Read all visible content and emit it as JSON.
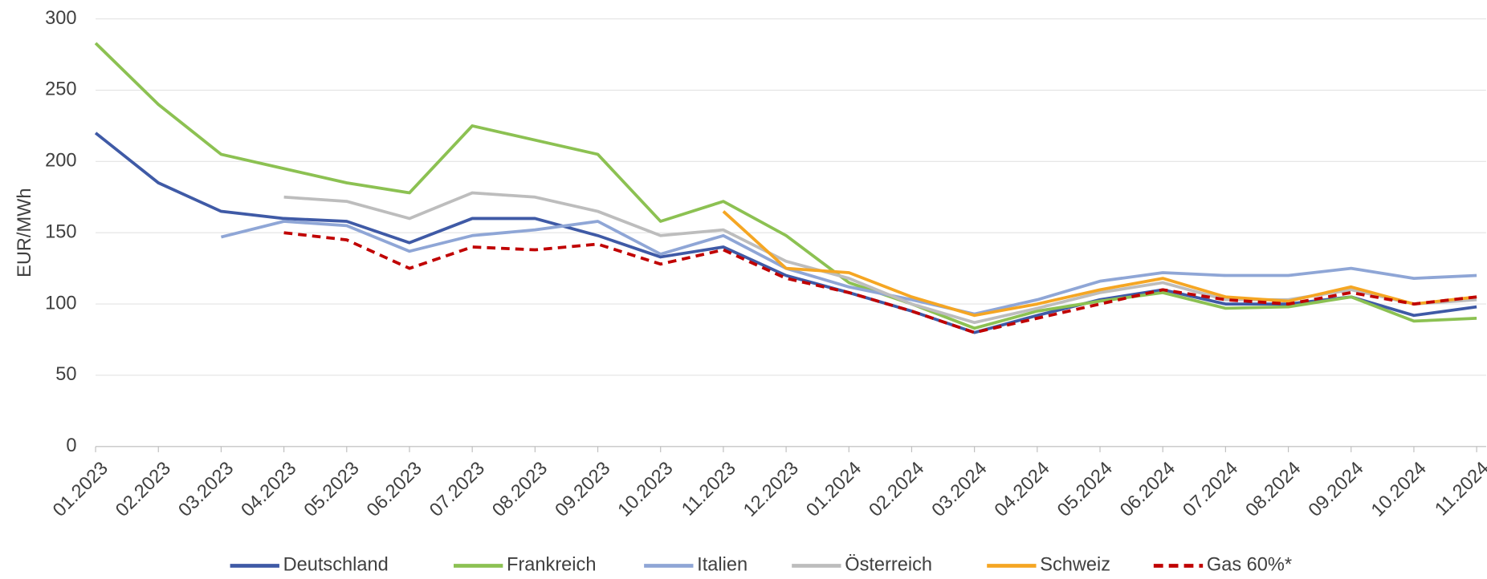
{
  "chart_data": {
    "type": "line",
    "y_label": "EUR/MWh",
    "x": [
      "01.2023",
      "02.2023",
      "03.2023",
      "04.2023",
      "05.2023",
      "06.2023",
      "07.2023",
      "08.2023",
      "09.2023",
      "10.2023",
      "11.2023",
      "12.2023",
      "01.2024",
      "02.2024",
      "03.2024",
      "04.2024",
      "05.2024",
      "06.2024",
      "07.2024",
      "08.2024",
      "09.2024",
      "10.2024",
      "11.2024"
    ],
    "series": [
      {
        "name": "Deutschland",
        "color": "#3f5aa6",
        "values": [
          220,
          185,
          165,
          160,
          158,
          143,
          160,
          160,
          148,
          133,
          140,
          120,
          108,
          95,
          80,
          92,
          103,
          110,
          100,
          100,
          105,
          92,
          98
        ]
      },
      {
        "name": "Frankreich",
        "color": "#8cc152",
        "values": [
          283,
          240,
          205,
          195,
          185,
          178,
          225,
          215,
          205,
          158,
          172,
          148,
          115,
          100,
          83,
          95,
          102,
          108,
          97,
          98,
          105,
          88,
          90
        ]
      },
      {
        "name": "Italien",
        "color": "#8fa6d6",
        "values": [
          null,
          null,
          147,
          158,
          155,
          137,
          148,
          152,
          158,
          135,
          148,
          125,
          112,
          103,
          93,
          103,
          116,
          122,
          120,
          120,
          125,
          118,
          120
        ]
      },
      {
        "name": "Österreich",
        "color": "#bdbdbd",
        "values": [
          null,
          null,
          null,
          175,
          172,
          160,
          178,
          175,
          165,
          148,
          152,
          130,
          118,
          100,
          87,
          97,
          108,
          115,
          103,
          103,
          110,
          100,
          103
        ]
      },
      {
        "name": "Schweiz",
        "color": "#f5a623",
        "values": [
          null,
          null,
          null,
          null,
          null,
          null,
          null,
          null,
          null,
          null,
          165,
          125,
          122,
          105,
          92,
          100,
          110,
          118,
          105,
          102,
          112,
          100,
          105
        ]
      },
      {
        "name": "Gas 60%*",
        "color": "#c00000",
        "dash": true,
        "values": [
          null,
          null,
          null,
          150,
          145,
          125,
          140,
          138,
          142,
          128,
          138,
          118,
          108,
          95,
          80,
          90,
          100,
          110,
          103,
          100,
          108,
          100,
          105
        ]
      }
    ],
    "ylim": [
      0,
      300
    ],
    "yticks": [
      0,
      50,
      100,
      150,
      200,
      250,
      300
    ],
    "grid": true,
    "legend": "bottom"
  }
}
